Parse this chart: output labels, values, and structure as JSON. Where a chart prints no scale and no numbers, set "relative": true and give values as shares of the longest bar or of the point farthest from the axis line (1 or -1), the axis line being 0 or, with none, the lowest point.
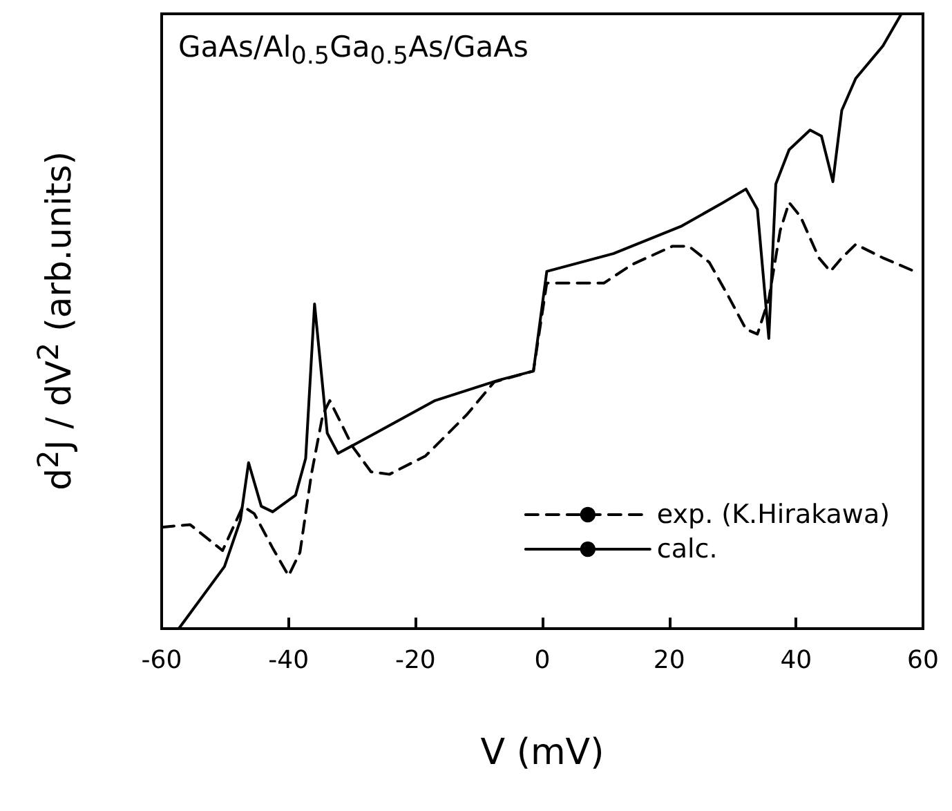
{
  "chart_data": {
    "type": "line",
    "xlabel": "V  (mV)",
    "ylabel": "d$^{2}$J / dV$^{2}$  (arb.units)",
    "annotations": [
      "GaAs/Al$_{0.5}$Ga$_{0.5}$As/GaAs"
    ],
    "relative": true,
    "xlim": [
      -60,
      60
    ],
    "xticks": [
      -60,
      -40,
      -20,
      0,
      20,
      40,
      60
    ],
    "tick_labels": "x",
    "grid": false,
    "legend": "bottom right",
    "marker": "none",
    "series": [
      {
        "name": "exp. (K.Hirakawa)",
        "color": "#000000",
        "line_style": "dashed",
        "x": [
          -60,
          -55.5,
          -50.4,
          -47.2,
          -45.4,
          -42.5,
          -40,
          -38.2,
          -36.4,
          -34.6,
          -33.5,
          -29.9,
          -27,
          -24.1,
          -18.4,
          -11.9,
          -7.6,
          -1.4,
          0.7,
          4,
          9.7,
          14.1,
          20.5,
          23.1,
          26.3,
          29.2,
          32.1,
          33.9,
          35.7,
          37.5,
          38.9,
          40.7,
          43.6,
          45.4,
          47.2,
          49.4,
          53.7,
          58.7
        ],
        "values": [
          0.165,
          0.169,
          0.127,
          0.199,
          0.187,
          0.131,
          0.086,
          0.124,
          0.251,
          0.348,
          0.371,
          0.296,
          0.255,
          0.251,
          0.281,
          0.348,
          0.401,
          0.419,
          0.562,
          0.562,
          0.562,
          0.592,
          0.622,
          0.622,
          0.596,
          0.543,
          0.487,
          0.479,
          0.536,
          0.648,
          0.693,
          0.67,
          0.603,
          0.581,
          0.603,
          0.625,
          0.603,
          0.581
        ]
      },
      {
        "name": "calc.",
        "color": "#000000",
        "line_style": "solid",
        "x": [
          -57.3,
          -50.1,
          -47.6,
          -46.3,
          -44.3,
          -42.5,
          -38.9,
          -37.3,
          -35.9,
          -33.9,
          -32.2,
          -26.3,
          -16.9,
          -6.9,
          -1.4,
          0.7,
          11.2,
          22,
          28.5,
          32.1,
          33.9,
          35.7,
          36.8,
          38.9,
          42.2,
          44,
          45.8,
          47.2,
          49.4,
          53.7,
          56.6
        ],
        "values": [
          0,
          0.101,
          0.176,
          0.27,
          0.199,
          0.19,
          0.217,
          0.277,
          0.528,
          0.318,
          0.285,
          0.318,
          0.371,
          0.404,
          0.419,
          0.581,
          0.61,
          0.655,
          0.693,
          0.715,
          0.682,
          0.472,
          0.723,
          0.779,
          0.811,
          0.801,
          0.727,
          0.843,
          0.895,
          0.948,
          1
        ]
      }
    ]
  }
}
